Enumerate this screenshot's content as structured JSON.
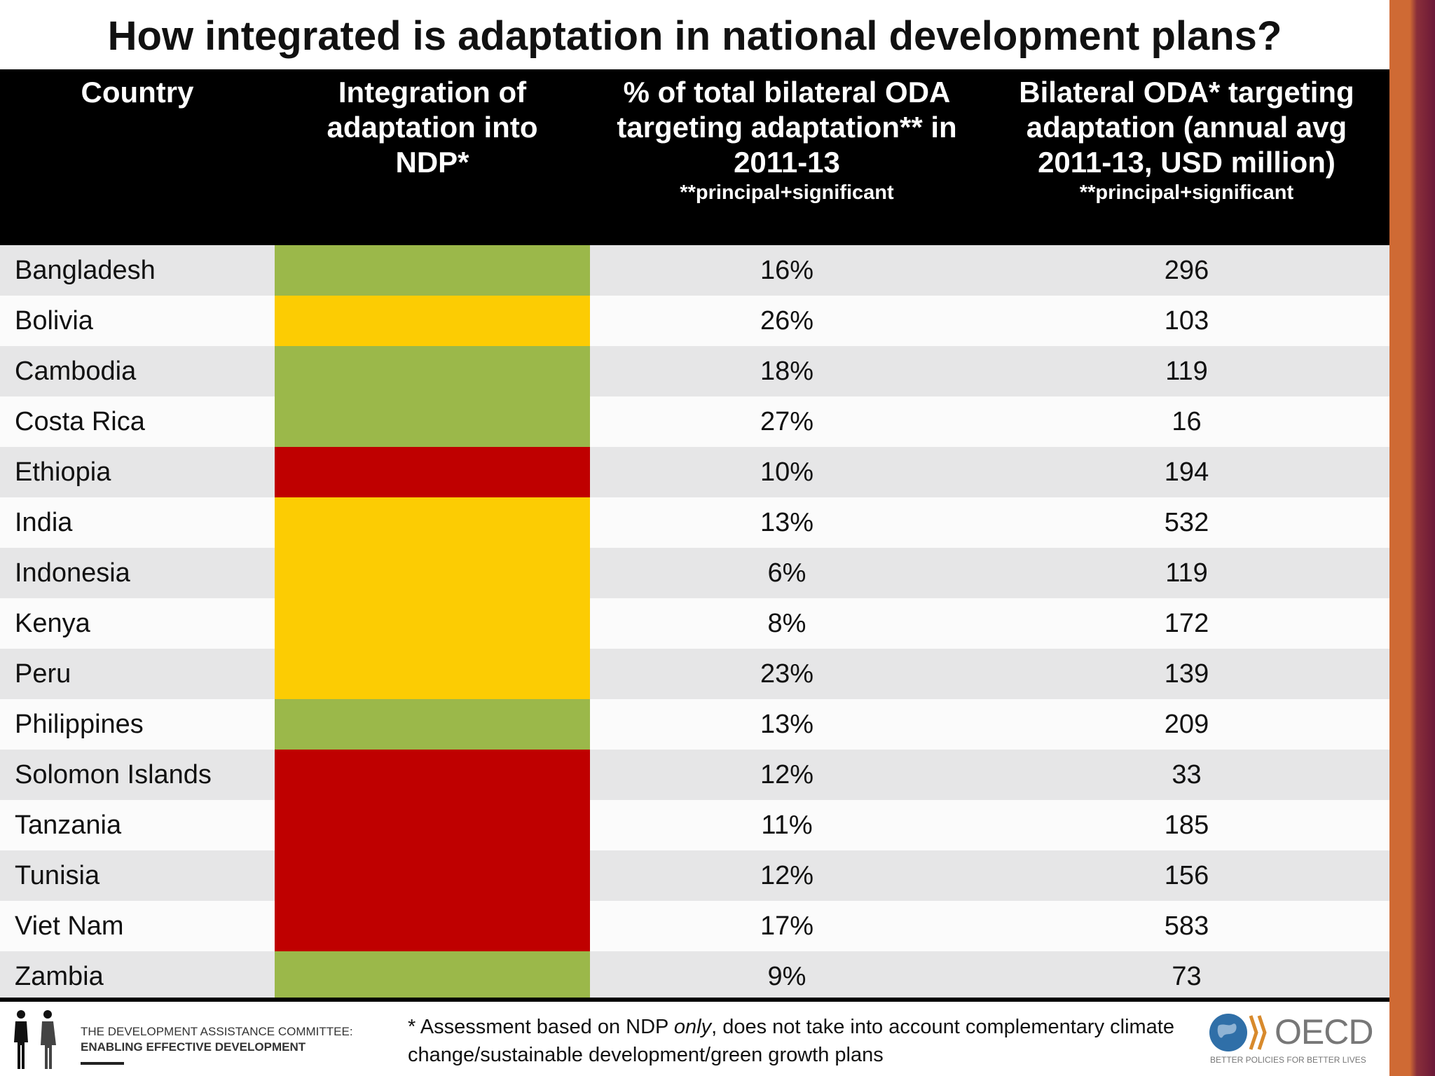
{
  "title": "How integrated is adaptation in national development plans?",
  "headers": {
    "country": "Country",
    "integration": "Integration of adaptation into NDP*",
    "pct": "% of total bilateral ODA targeting adaptation** in 2011-13",
    "pct_note": "**principal+significant",
    "oda": "Bilateral ODA* targeting adaptation (annual avg 2011-13, USD million)",
    "oda_note": "**principal+significant"
  },
  "colors": {
    "green": "#9bb84a",
    "yellow": "#fccc03",
    "red": "#bf0000"
  },
  "rows": [
    {
      "country": "Bangladesh",
      "integration": "green",
      "pct": "16%",
      "oda": "296"
    },
    {
      "country": "Bolivia",
      "integration": "yellow",
      "pct": "26%",
      "oda": "103"
    },
    {
      "country": "Cambodia",
      "integration": "green",
      "pct": "18%",
      "oda": "119"
    },
    {
      "country": "Costa Rica",
      "integration": "green",
      "pct": "27%",
      "oda": "16"
    },
    {
      "country": "Ethiopia",
      "integration": "red",
      "pct": "10%",
      "oda": "194"
    },
    {
      "country": "India",
      "integration": "yellow",
      "pct": "13%",
      "oda": "532"
    },
    {
      "country": "Indonesia",
      "integration": "yellow",
      "pct": "6%",
      "oda": "119"
    },
    {
      "country": "Kenya",
      "integration": "yellow",
      "pct": "8%",
      "oda": "172"
    },
    {
      "country": "Peru",
      "integration": "yellow",
      "pct": "23%",
      "oda": "139"
    },
    {
      "country": "Philippines",
      "integration": "green",
      "pct": "13%",
      "oda": "209"
    },
    {
      "country": "Solomon Islands",
      "integration": "red",
      "pct": "12%",
      "oda": "33"
    },
    {
      "country": "Tanzania",
      "integration": "red",
      "pct": "11%",
      "oda": "185"
    },
    {
      "country": "Tunisia",
      "integration": "red",
      "pct": "12%",
      "oda": "156"
    },
    {
      "country": "Viet Nam",
      "integration": "red",
      "pct": "17%",
      "oda": "583"
    },
    {
      "country": "Zambia",
      "integration": "green",
      "pct": "9%",
      "oda": "73"
    }
  ],
  "footer": {
    "dac_line1": "THE DEVELOPMENT ASSISTANCE COMMITTEE:",
    "dac_line2": "ENABLING EFFECTIVE DEVELOPMENT",
    "note_a": "* Assessment based on NDP ",
    "note_em": "only",
    "note_b": ", does not take into account complementary climate change/sustainable development/green growth plans",
    "oecd": "OECD",
    "oecd_tag": "BETTER POLICIES FOR BETTER LIVES"
  }
}
